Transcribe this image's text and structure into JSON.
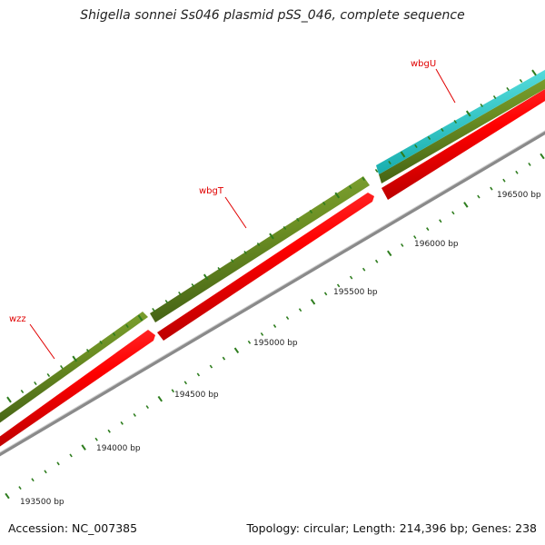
{
  "title": "Shigella sonnei Ss046 plasmid pSS_046, complete sequence",
  "footer": {
    "accession": "Accession: NC_007385",
    "summary": "Topology: circular; Length: 214,396 bp; Genes: 238"
  },
  "ticks": [
    {
      "label": "193500 bp"
    },
    {
      "label": "194000 bp"
    },
    {
      "label": "194500 bp"
    },
    {
      "label": "195000 bp"
    },
    {
      "label": "195500 bp"
    },
    {
      "label": "196000 bp"
    },
    {
      "label": "196500 bp"
    }
  ],
  "genes": [
    {
      "name": "wzz"
    },
    {
      "name": "wbgT"
    },
    {
      "name": "wbgU"
    }
  ],
  "colors": {
    "olive": "#6b8e23",
    "red": "#ff0000",
    "cyan": "#1ec8c8",
    "backbone": "#8a8a8a",
    "tick": "#2e7d1e",
    "label": "#e00000"
  }
}
